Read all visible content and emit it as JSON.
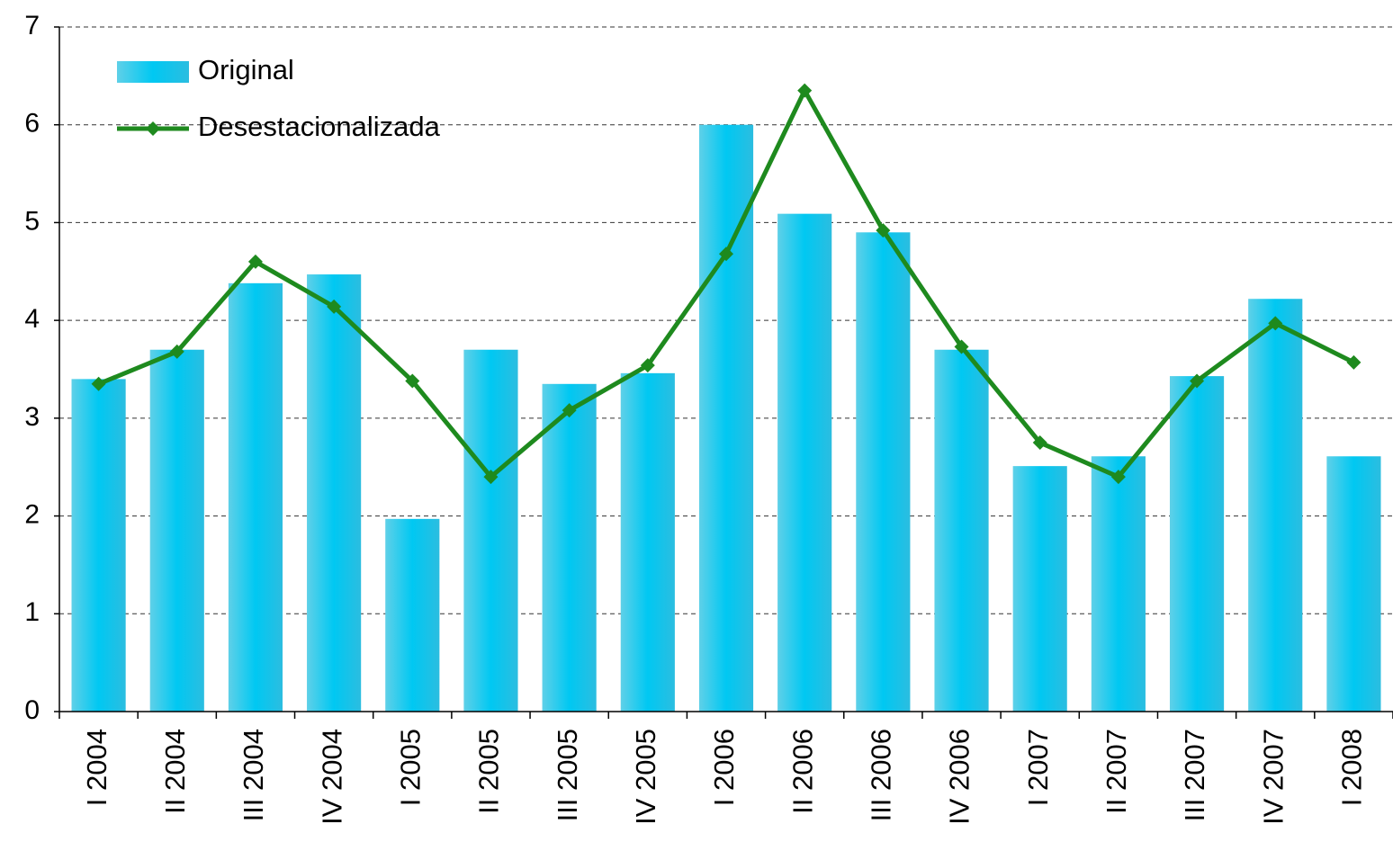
{
  "chart_data": {
    "type": "bar",
    "categories": [
      "I 2004",
      "II 2004",
      "III 2004",
      "IV 2004",
      "I 2005",
      "II 2005",
      "III 2005",
      "IV 2005",
      "I 2006",
      "II 2006",
      "III 2006",
      "IV 2006",
      "I 2007",
      "II 2007",
      "III 2007",
      "IV 2007",
      "I 2008"
    ],
    "series": [
      {
        "name": "Original",
        "type": "bar",
        "color": "#00c8f2",
        "values": [
          3.4,
          3.7,
          4.38,
          4.47,
          1.97,
          3.7,
          3.35,
          3.46,
          6.0,
          5.09,
          4.9,
          3.7,
          2.51,
          2.61,
          3.43,
          4.22,
          2.61
        ]
      },
      {
        "name": "Desestacionalizada",
        "type": "line",
        "color": "#1e8a1e",
        "values": [
          3.35,
          3.68,
          4.6,
          4.14,
          3.38,
          2.4,
          3.08,
          3.54,
          4.68,
          6.35,
          4.92,
          3.73,
          2.75,
          2.4,
          3.38,
          3.97,
          3.57
        ]
      }
    ],
    "ylim": [
      0,
      7
    ],
    "yticks": [
      0,
      1,
      2,
      3,
      4,
      5,
      6,
      7
    ],
    "grid": true,
    "legend": "upper left"
  }
}
